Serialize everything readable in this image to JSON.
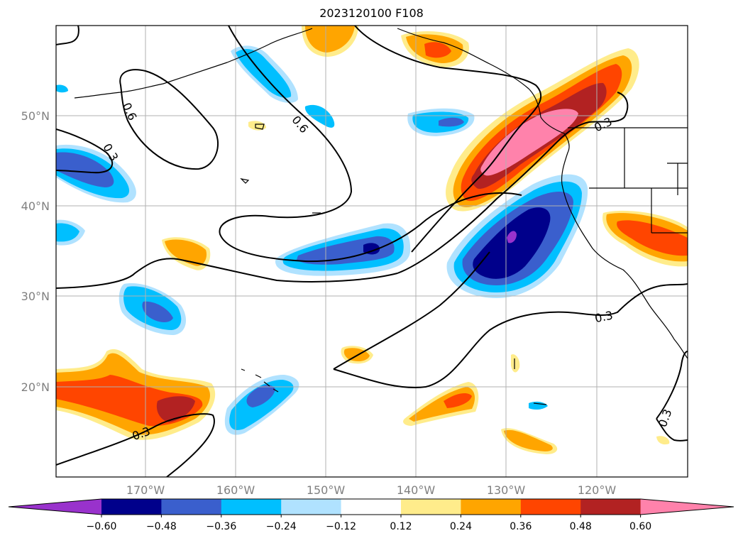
{
  "title": "2023120100 F108",
  "map": {
    "lat_labels": [
      "50°N",
      "40°N",
      "30°N",
      "20°N"
    ],
    "lon_labels": [
      "170°W",
      "160°W",
      "150°W",
      "140°W",
      "130°W",
      "120°W"
    ],
    "contour_labels": [
      "0.6",
      "0.6",
      "0.3",
      "0.3",
      "0.3",
      "0.3",
      "0.3"
    ],
    "extent": {
      "lon": [
        -180,
        -110
      ],
      "lat": [
        10,
        60
      ]
    },
    "gridlines": true
  },
  "colorbar": {
    "tick_labels": [
      "−0.60",
      "−0.48",
      "−0.36",
      "−0.24",
      "−0.12",
      "0.12",
      "0.24",
      "0.36",
      "0.48",
      "0.60"
    ],
    "colors": [
      "#9932cc",
      "#00008b",
      "#3a5fcd",
      "#00bfff",
      "#b0e2ff",
      "#ffffff",
      "#ffec8b",
      "#ffa500",
      "#ff4500",
      "#b22222",
      "#ff82ab"
    ]
  }
}
